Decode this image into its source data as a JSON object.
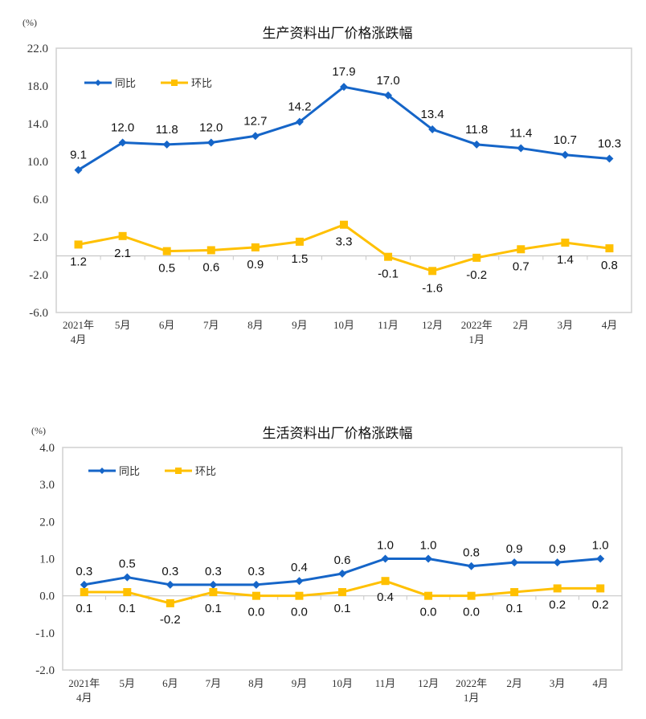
{
  "chart_data": [
    {
      "type": "line",
      "title": "生产资料出厂价格涨跌幅",
      "ylabel": "(%)",
      "categories": [
        "2021年\n4月",
        "5月",
        "6月",
        "7月",
        "8月",
        "9月",
        "10月",
        "11月",
        "12月",
        "2022年\n1月",
        "2月",
        "3月",
        "4月"
      ],
      "ylim": [
        -6,
        22
      ],
      "yticks": [
        "22.0",
        "18.0",
        "14.0",
        "10.0",
        "6.0",
        "2.0",
        "-2.0",
        "-6.0"
      ],
      "legend_position": "top-left",
      "grid": false,
      "series": [
        {
          "name": "同比",
          "color": "#1565C8",
          "marker": "diamond",
          "values": [
            9.1,
            12.0,
            11.8,
            12.0,
            12.7,
            14.2,
            17.9,
            17.0,
            13.4,
            11.8,
            11.4,
            10.7,
            10.3
          ],
          "labels": [
            "9.1",
            "12.0",
            "11.8",
            "12.0",
            "12.7",
            "14.2",
            "17.9",
            "17.0",
            "13.4",
            "11.8",
            "11.4",
            "10.7",
            "10.3"
          ]
        },
        {
          "name": "环比",
          "color": "#FFC000",
          "marker": "square",
          "values": [
            1.2,
            2.1,
            0.5,
            0.6,
            0.9,
            1.5,
            3.3,
            -0.1,
            -1.6,
            -0.2,
            0.7,
            1.4,
            0.8
          ],
          "labels": [
            "1.2",
            "2.1",
            "0.5",
            "0.6",
            "0.9",
            "1.5",
            "3.3",
            "-0.1",
            "-1.6",
            "-0.2",
            "0.7",
            "1.4",
            "0.8"
          ]
        }
      ]
    },
    {
      "type": "line",
      "title": "生活资料出厂价格涨跌幅",
      "ylabel": "(%)",
      "categories": [
        "2021年\n4月",
        "5月",
        "6月",
        "7月",
        "8月",
        "9月",
        "10月",
        "11月",
        "12月",
        "2022年\n1月",
        "2月",
        "3月",
        "4月"
      ],
      "ylim": [
        -2,
        4
      ],
      "yticks": [
        "4.0",
        "3.0",
        "2.0",
        "1.0",
        "0.0",
        "-1.0",
        "-2.0"
      ],
      "legend_position": "top-left",
      "grid": false,
      "series": [
        {
          "name": "同比",
          "color": "#1565C8",
          "marker": "diamond",
          "values": [
            0.3,
            0.5,
            0.3,
            0.3,
            0.3,
            0.4,
            0.6,
            1.0,
            1.0,
            0.8,
            0.9,
            0.9,
            1.0
          ],
          "labels": [
            "0.3",
            "0.5",
            "0.3",
            "0.3",
            "0.3",
            "0.4",
            "0.6",
            "1.0",
            "1.0",
            "0.8",
            "0.9",
            "0.9",
            "1.0"
          ]
        },
        {
          "name": "环比",
          "color": "#FFC000",
          "marker": "square",
          "values": [
            0.1,
            0.1,
            -0.2,
            0.1,
            0.0,
            0.0,
            0.1,
            0.4,
            0.0,
            0.0,
            0.1,
            0.2,
            0.2
          ],
          "labels": [
            "0.1",
            "0.1",
            "-0.2",
            "0.1",
            "0.0",
            "0.0",
            "0.1",
            "0.4",
            "0.0",
            "0.0",
            "0.1",
            "0.2",
            "0.2"
          ]
        }
      ]
    }
  ]
}
